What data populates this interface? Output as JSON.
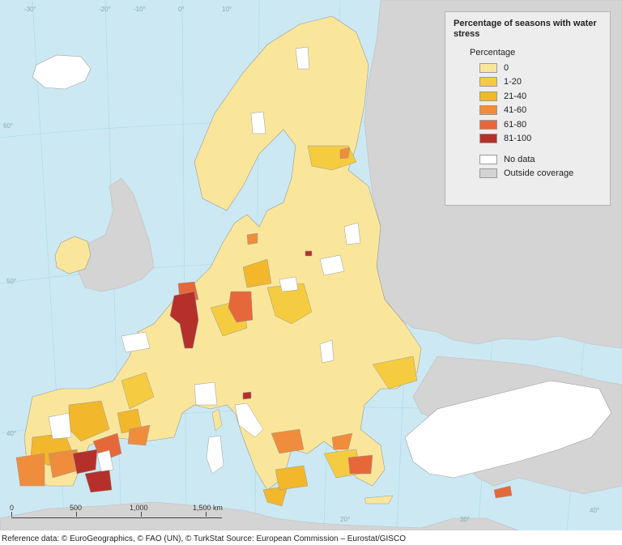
{
  "legend": {
    "title": "Percentage of seasons with water stress",
    "subtitle": "Percentage",
    "classes": [
      {
        "label": "0",
        "color": "#fae69b"
      },
      {
        "label": "1-20",
        "color": "#f5cc40"
      },
      {
        "label": "21-40",
        "color": "#f2b72b"
      },
      {
        "label": "41-60",
        "color": "#ef8d3d"
      },
      {
        "label": "61-80",
        "color": "#e6683a"
      },
      {
        "label": "81-100",
        "color": "#b5302a"
      }
    ],
    "extra": [
      {
        "label": "No data",
        "color": "#ffffff"
      },
      {
        "label": "Outside coverage",
        "color": "#d3d3d3"
      }
    ]
  },
  "scale_bar": {
    "labels": [
      "0",
      "500",
      "1,000",
      "1,500 km"
    ]
  },
  "graticule": {
    "lon_labels": [
      "-30°",
      "-20°",
      "-10°",
      "0°",
      "10°",
      "20°",
      "30°",
      "40°"
    ],
    "lat_labels": [
      "60°",
      "50°",
      "40°"
    ]
  },
  "footer": "Reference data: © EuroGeographics, © FAO (UN), © TurkStat Source: European Commission – Eurostat/GISCO",
  "colors": {
    "sea": "#cce9f3",
    "outside": "#d4d4d4",
    "border": "#9a9a9a"
  }
}
